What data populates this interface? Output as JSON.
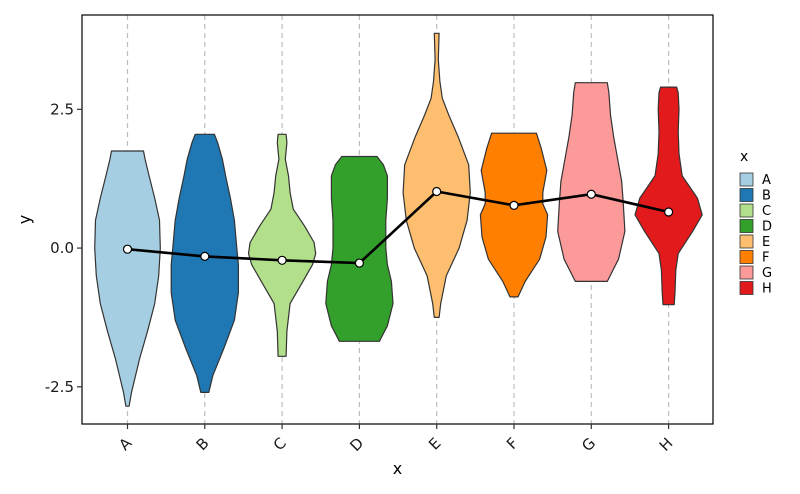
{
  "chart_data": {
    "type": "violin",
    "title": "",
    "xlabel": "x",
    "ylabel": "y",
    "ylim": [
      -3.17,
      4.2
    ],
    "yticks": [
      -2.5,
      0.0,
      2.5
    ],
    "ytick_labels": [
      "-2.5",
      "0.0",
      "2.5"
    ],
    "categories": [
      "A",
      "B",
      "C",
      "D",
      "E",
      "F",
      "G",
      "H"
    ],
    "colors": [
      "#A6CEE3",
      "#1F78B4",
      "#B2DF8A",
      "#33A02C",
      "#FDBF6F",
      "#FF7F00",
      "#FB9A99",
      "#E31A1C"
    ],
    "grid": "vertical dashed at categories",
    "legend": {
      "title": "x",
      "position": "right",
      "entries": [
        "A",
        "B",
        "C",
        "D",
        "E",
        "F",
        "G",
        "H"
      ]
    },
    "violins": [
      {
        "category": "A",
        "min": -2.85,
        "max": 1.75,
        "profile": [
          [
            -2.85,
            0.02
          ],
          [
            -2.6,
            0.05
          ],
          [
            -2.0,
            0.15
          ],
          [
            -1.5,
            0.25
          ],
          [
            -1.0,
            0.34
          ],
          [
            -0.5,
            0.39
          ],
          [
            0.0,
            0.41
          ],
          [
            0.5,
            0.4
          ],
          [
            0.9,
            0.34
          ],
          [
            1.3,
            0.27
          ],
          [
            1.6,
            0.22
          ],
          [
            1.75,
            0.2
          ]
        ]
      },
      {
        "category": "B",
        "min": -2.6,
        "max": 2.05,
        "profile": [
          [
            -2.6,
            0.05
          ],
          [
            -2.3,
            0.1
          ],
          [
            -1.8,
            0.24
          ],
          [
            -1.3,
            0.37
          ],
          [
            -0.8,
            0.42
          ],
          [
            -0.3,
            0.42
          ],
          [
            0.0,
            0.4
          ],
          [
            0.5,
            0.37
          ],
          [
            0.9,
            0.32
          ],
          [
            1.3,
            0.26
          ],
          [
            1.6,
            0.22
          ],
          [
            1.9,
            0.16
          ],
          [
            2.05,
            0.12
          ]
        ]
      },
      {
        "category": "C",
        "min": -1.95,
        "max": 2.05,
        "profile": [
          [
            -1.95,
            0.05
          ],
          [
            -1.5,
            0.06
          ],
          [
            -1.0,
            0.1
          ],
          [
            -0.6,
            0.26
          ],
          [
            -0.3,
            0.38
          ],
          [
            -0.1,
            0.42
          ],
          [
            0.1,
            0.4
          ],
          [
            0.4,
            0.28
          ],
          [
            0.7,
            0.14
          ],
          [
            1.0,
            0.1
          ],
          [
            1.3,
            0.08
          ],
          [
            1.6,
            0.04
          ],
          [
            1.9,
            0.06
          ],
          [
            2.05,
            0.05
          ]
        ]
      },
      {
        "category": "D",
        "min": -1.68,
        "max": 1.65,
        "profile": [
          [
            -1.68,
            0.25
          ],
          [
            -1.4,
            0.35
          ],
          [
            -1.0,
            0.42
          ],
          [
            -0.6,
            0.4
          ],
          [
            -0.3,
            0.35
          ],
          [
            0.0,
            0.33
          ],
          [
            0.5,
            0.33
          ],
          [
            0.9,
            0.35
          ],
          [
            1.3,
            0.35
          ],
          [
            1.5,
            0.3
          ],
          [
            1.65,
            0.22
          ]
        ]
      },
      {
        "category": "E",
        "min": -1.25,
        "max": 3.87,
        "profile": [
          [
            -1.25,
            0.03
          ],
          [
            -1.0,
            0.05
          ],
          [
            -0.5,
            0.12
          ],
          [
            0.0,
            0.28
          ],
          [
            0.5,
            0.38
          ],
          [
            1.0,
            0.42
          ],
          [
            1.5,
            0.4
          ],
          [
            2.0,
            0.27
          ],
          [
            2.4,
            0.15
          ],
          [
            2.7,
            0.07
          ],
          [
            3.0,
            0.04
          ],
          [
            3.4,
            0.02
          ],
          [
            3.87,
            0.03
          ]
        ]
      },
      {
        "category": "F",
        "min": -0.88,
        "max": 2.07,
        "profile": [
          [
            -0.88,
            0.05
          ],
          [
            -0.6,
            0.14
          ],
          [
            -0.2,
            0.32
          ],
          [
            0.2,
            0.4
          ],
          [
            0.6,
            0.42
          ],
          [
            0.8,
            0.36
          ],
          [
            1.0,
            0.36
          ],
          [
            1.4,
            0.41
          ],
          [
            1.8,
            0.34
          ],
          [
            2.07,
            0.28
          ]
        ]
      },
      {
        "category": "G",
        "min": -0.6,
        "max": 2.98,
        "profile": [
          [
            -0.6,
            0.2
          ],
          [
            -0.2,
            0.34
          ],
          [
            0.3,
            0.42
          ],
          [
            0.8,
            0.4
          ],
          [
            1.2,
            0.38
          ],
          [
            1.6,
            0.33
          ],
          [
            2.0,
            0.28
          ],
          [
            2.4,
            0.24
          ],
          [
            2.8,
            0.22
          ],
          [
            2.98,
            0.2
          ]
        ]
      },
      {
        "category": "H",
        "min": -1.02,
        "max": 2.9,
        "profile": [
          [
            -1.02,
            0.07
          ],
          [
            -0.8,
            0.08
          ],
          [
            -0.4,
            0.09
          ],
          [
            -0.1,
            0.12
          ],
          [
            0.3,
            0.3
          ],
          [
            0.6,
            0.42
          ],
          [
            0.9,
            0.36
          ],
          [
            1.3,
            0.17
          ],
          [
            1.7,
            0.13
          ],
          [
            2.1,
            0.12
          ],
          [
            2.5,
            0.13
          ],
          [
            2.8,
            0.12
          ],
          [
            2.9,
            0.1
          ]
        ]
      }
    ],
    "line": {
      "name": "",
      "x": [
        "A",
        "B",
        "C",
        "D",
        "E",
        "F",
        "G",
        "H"
      ],
      "y": [
        -0.02,
        -0.15,
        -0.22,
        -0.27,
        1.02,
        0.77,
        0.97,
        0.65
      ]
    }
  }
}
